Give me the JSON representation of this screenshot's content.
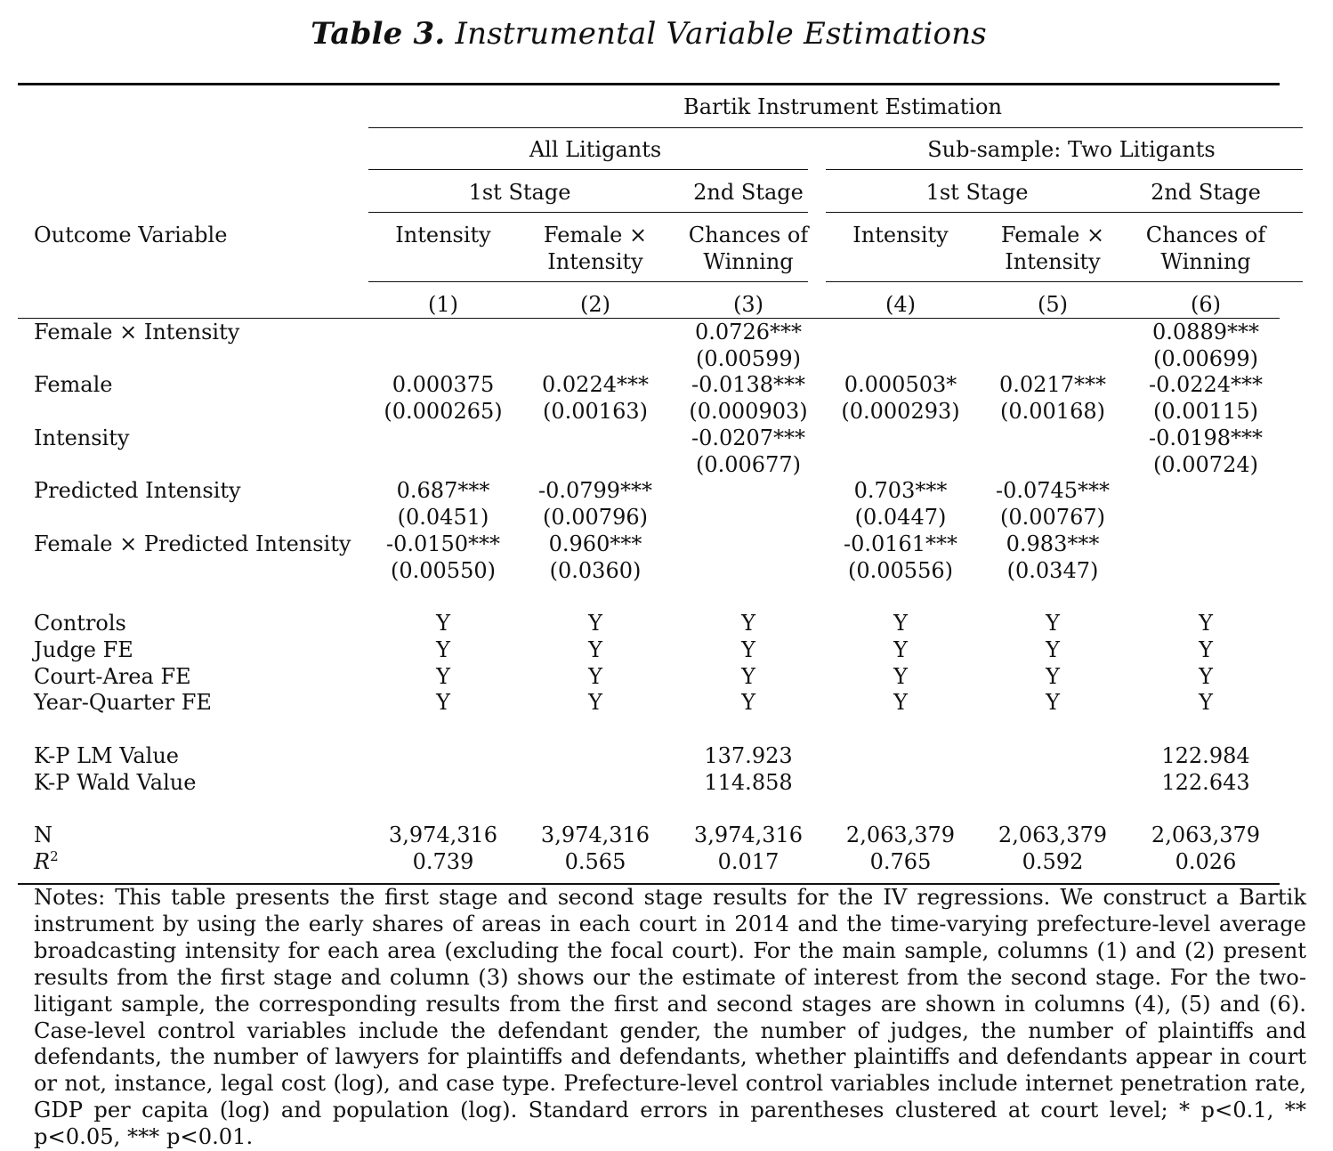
{
  "title_label": "Table 3.",
  "title_text": "Instrumental Variable Estimations",
  "header": {
    "top": "Bartik Instrument Estimation",
    "groups": [
      "All Litigants",
      "Sub-sample: Two Litigants"
    ],
    "stages": [
      "1st Stage",
      "2nd Stage",
      "1st Stage",
      "2nd Stage"
    ],
    "outcome_label": "Outcome Variable",
    "outcomes": [
      [
        "Intensity",
        ""
      ],
      [
        "Female ×",
        "Intensity"
      ],
      [
        "Chances of",
        "Winning"
      ],
      [
        "Intensity",
        ""
      ],
      [
        "Female ×",
        "Intensity"
      ],
      [
        "Chances of",
        "Winning"
      ]
    ],
    "col_numbers": [
      "(1)",
      "(2)",
      "(3)",
      "(4)",
      "(5)",
      "(6)"
    ]
  },
  "rows": [
    {
      "label": "Female × Intensity",
      "coef": [
        "",
        "",
        "0.0726***",
        "",
        "",
        "0.0889***"
      ],
      "se": [
        "",
        "",
        "(0.00599)",
        "",
        "",
        "(0.00699)"
      ]
    },
    {
      "label": "Female",
      "coef": [
        "0.000375",
        "0.0224***",
        "-0.0138***",
        "0.000503*",
        "0.0217***",
        "-0.0224***"
      ],
      "se": [
        "(0.000265)",
        "(0.00163)",
        "(0.000903)",
        "(0.000293)",
        "(0.00168)",
        "(0.00115)"
      ]
    },
    {
      "label": "Intensity",
      "coef": [
        "",
        "",
        "-0.0207***",
        "",
        "",
        "-0.0198***"
      ],
      "se": [
        "",
        "",
        "(0.00677)",
        "",
        "",
        "(0.00724)"
      ]
    },
    {
      "label": "Predicted Intensity",
      "coef": [
        "0.687***",
        "-0.0799***",
        "",
        "0.703***",
        "-0.0745***",
        ""
      ],
      "se": [
        "(0.0451)",
        "(0.00796)",
        "",
        "(0.0447)",
        "(0.00767)",
        ""
      ]
    },
    {
      "label": "Female × Predicted Intensity",
      "coef": [
        "-0.0150***",
        "0.960***",
        "",
        "-0.0161***",
        "0.983***",
        ""
      ],
      "se": [
        "(0.00550)",
        "(0.0360)",
        "",
        "(0.00556)",
        "(0.0347)",
        ""
      ]
    }
  ],
  "fe_rows": [
    {
      "label": "Controls",
      "values": [
        "Y",
        "Y",
        "Y",
        "Y",
        "Y",
        "Y"
      ]
    },
    {
      "label": "Judge FE",
      "values": [
        "Y",
        "Y",
        "Y",
        "Y",
        "Y",
        "Y"
      ]
    },
    {
      "label": "Court-Area FE",
      "values": [
        "Y",
        "Y",
        "Y",
        "Y",
        "Y",
        "Y"
      ]
    },
    {
      "label": "Year-Quarter FE",
      "values": [
        "Y",
        "Y",
        "Y",
        "Y",
        "Y",
        "Y"
      ]
    }
  ],
  "kp_rows": [
    {
      "label": "K-P LM Value",
      "values": [
        "",
        "",
        "137.923",
        "",
        "",
        "122.984"
      ]
    },
    {
      "label": "K-P Wald Value",
      "values": [
        "",
        "",
        "114.858",
        "",
        "",
        "122.643"
      ]
    }
  ],
  "stat_rows": [
    {
      "label": "N",
      "values": [
        "3,974,316",
        "3,974,316",
        "3,974,316",
        "2,063,379",
        "2,063,379",
        "2,063,379"
      ]
    },
    {
      "label": "R",
      "sup": "2",
      "values": [
        "0.739",
        "0.565",
        "0.017",
        "0.765",
        "0.592",
        "0.026"
      ]
    }
  ],
  "notes": "Notes: This table presents the first stage and second stage results for the IV regressions. We construct a Bartik instrument by using the early shares of areas in each court in 2014 and the time-varying prefecture-level average broadcasting intensity for each area (excluding the focal court). For the main sample, columns (1) and (2) present results from the first stage and column (3) shows our the estimate of interest from the second stage. For the two-litigant sample, the corresponding results from the first and second stages are shown in columns (4), (5) and (6). Case-level control variables include the defendant gender, the number of judges, the number of plaintiffs and defendants, the number of lawyers for plaintiffs and defendants, whether plaintiffs and defendants appear in court or not, instance, legal cost (log), and case type. Prefecture-level control variables include internet penetration rate, GDP per capita (log) and population (log). Standard errors in parentheses clustered at court level; * p<0.1, ** p<0.05, *** p<0.01."
}
